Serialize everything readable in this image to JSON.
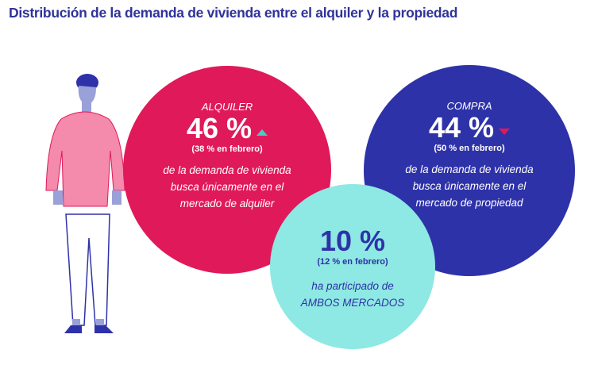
{
  "title": "Distribución de la demanda de vivienda entre el alquiler y la propiedad",
  "colors": {
    "title": "#2f3399",
    "alquiler": "#e0195a",
    "compra": "#2e32a8",
    "ambos": "#8ee8e3",
    "trend_up": "#50c9c4",
    "trend_down": "#e0195a"
  },
  "alquiler": {
    "label": "ALQUILER",
    "value": "46 %",
    "trend": "up",
    "previous": "(38 % en febrero)",
    "desc": [
      "de la demanda de vivienda",
      "busca únicamente en el",
      "mercado de alquiler"
    ]
  },
  "compra": {
    "label": "COMPRA",
    "value": "44 %",
    "trend": "down",
    "previous": "(50 % en febrero)",
    "desc": [
      "de la demanda de vivienda",
      "busca únicamente en el",
      "mercado de propiedad"
    ]
  },
  "ambos": {
    "value": "10 %",
    "previous": "(12 % en febrero)",
    "desc": [
      "ha participado de",
      "AMBOS MERCADOS"
    ]
  }
}
